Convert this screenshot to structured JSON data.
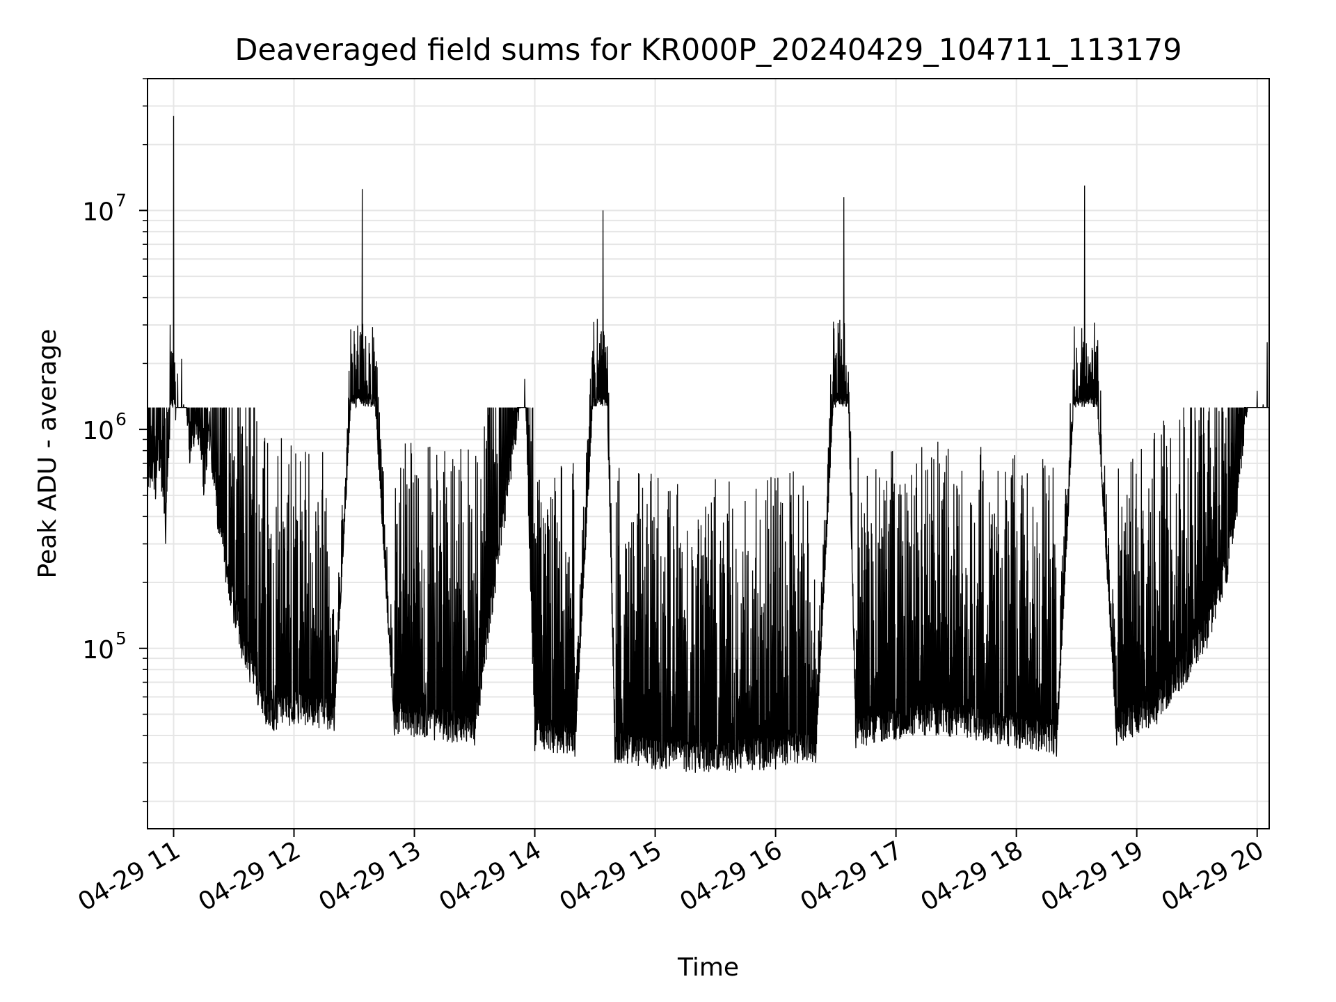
{
  "chart_data": {
    "type": "line",
    "title": "Deaveraged field sums for KR000P_20240429_104711_113179",
    "xlabel": "Time",
    "ylabel": "Peak ADU - average",
    "yscale": "log",
    "grid": true,
    "xlim": [
      "2024-04-29 10:47",
      "2024-04-29 20:06"
    ],
    "ylim": [
      15000,
      40000000
    ],
    "x_ticks": [
      {
        "value": "2024-04-29 11:00",
        "label": "04-29 11"
      },
      {
        "value": "2024-04-29 12:00",
        "label": "04-29 12"
      },
      {
        "value": "2024-04-29 13:00",
        "label": "04-29 13"
      },
      {
        "value": "2024-04-29 14:00",
        "label": "04-29 14"
      },
      {
        "value": "2024-04-29 15:00",
        "label": "04-29 15"
      },
      {
        "value": "2024-04-29 16:00",
        "label": "04-29 16"
      },
      {
        "value": "2024-04-29 17:00",
        "label": "04-29 17"
      },
      {
        "value": "2024-04-29 18:00",
        "label": "04-29 18"
      },
      {
        "value": "2024-04-29 19:00",
        "label": "04-29 19"
      },
      {
        "value": "2024-04-29 20:00",
        "label": "04-29 20"
      }
    ],
    "y_ticks": [
      {
        "value": 100000,
        "base": "10",
        "exp": "5"
      },
      {
        "value": 1000000,
        "base": "10",
        "exp": "6"
      },
      {
        "value": 10000000,
        "base": "10",
        "exp": "7"
      }
    ],
    "line_color": "#000000",
    "grid_color": "#e6e6e6",
    "series": [
      {
        "points": [
          [
            "2024-04-29 10:47",
            420000
          ],
          [
            "2024-04-29 10:49",
            600000
          ],
          [
            "2024-04-29 10:51",
            480000
          ],
          [
            "2024-04-29 10:52",
            720000
          ],
          [
            "2024-04-29 10:54",
            520000
          ],
          [
            "2024-04-29 10:56",
            300000
          ],
          [
            "2024-04-29 10:58",
            900000
          ],
          [
            "2024-04-29 11:00",
            27000000
          ],
          [
            "2024-04-29 11:01",
            1100000
          ],
          [
            "2024-04-29 11:02",
            1800000
          ],
          [
            "2024-04-29 11:04",
            2100000
          ],
          [
            "2024-04-29 11:05",
            1300000
          ],
          [
            "2024-04-29 11:08",
            700000
          ],
          [
            "2024-04-29 11:12",
            900000
          ],
          [
            "2024-04-29 11:15",
            500000
          ],
          [
            "2024-04-29 11:18",
            800000
          ],
          [
            "2024-04-29 11:22",
            350000
          ],
          [
            "2024-04-29 11:26",
            200000
          ],
          [
            "2024-04-29 11:30",
            130000
          ],
          [
            "2024-04-29 11:34",
            90000
          ],
          [
            "2024-04-29 11:38",
            70000
          ],
          [
            "2024-04-29 11:42",
            55000
          ],
          [
            "2024-04-29 11:46",
            45000
          ],
          [
            "2024-04-29 11:50",
            42000
          ],
          [
            "2024-04-29 12:00",
            45000
          ],
          [
            "2024-04-29 12:20",
            42000
          ],
          [
            "2024-04-29 12:34",
            12500000
          ],
          [
            "2024-04-29 12:50",
            40000
          ],
          [
            "2024-04-29 13:10",
            38000
          ],
          [
            "2024-04-29 13:30",
            36000
          ],
          [
            "2024-04-29 13:55",
            1700000
          ],
          [
            "2024-04-29 14:00",
            34000
          ],
          [
            "2024-04-29 14:20",
            32000
          ],
          [
            "2024-04-29 14:34",
            10000000
          ],
          [
            "2024-04-29 14:40",
            30000
          ],
          [
            "2024-04-29 15:00",
            28000
          ],
          [
            "2024-04-29 15:20",
            27000
          ],
          [
            "2024-04-29 15:40",
            27000
          ],
          [
            "2024-04-29 16:00",
            28000
          ],
          [
            "2024-04-29 16:20",
            30000
          ],
          [
            "2024-04-29 16:34",
            11500000
          ],
          [
            "2024-04-29 16:40",
            35000
          ],
          [
            "2024-04-29 17:00",
            38000
          ],
          [
            "2024-04-29 17:20",
            40000
          ],
          [
            "2024-04-29 17:40",
            38000
          ],
          [
            "2024-04-29 18:00",
            35000
          ],
          [
            "2024-04-29 18:20",
            32000
          ],
          [
            "2024-04-29 18:34",
            13000000
          ],
          [
            "2024-04-29 18:50",
            36000
          ],
          [
            "2024-04-29 19:10",
            45000
          ],
          [
            "2024-04-29 19:25",
            70000
          ],
          [
            "2024-04-29 19:35",
            100000
          ],
          [
            "2024-04-29 19:45",
            200000
          ],
          [
            "2024-04-29 19:50",
            400000
          ],
          [
            "2024-04-29 19:55",
            1200000
          ],
          [
            "2024-04-29 20:00",
            1500000
          ],
          [
            "2024-04-29 20:03",
            1300000
          ],
          [
            "2024-04-29 20:05",
            2500000
          ],
          [
            "2024-04-29 20:06",
            900000
          ]
        ]
      }
    ]
  }
}
